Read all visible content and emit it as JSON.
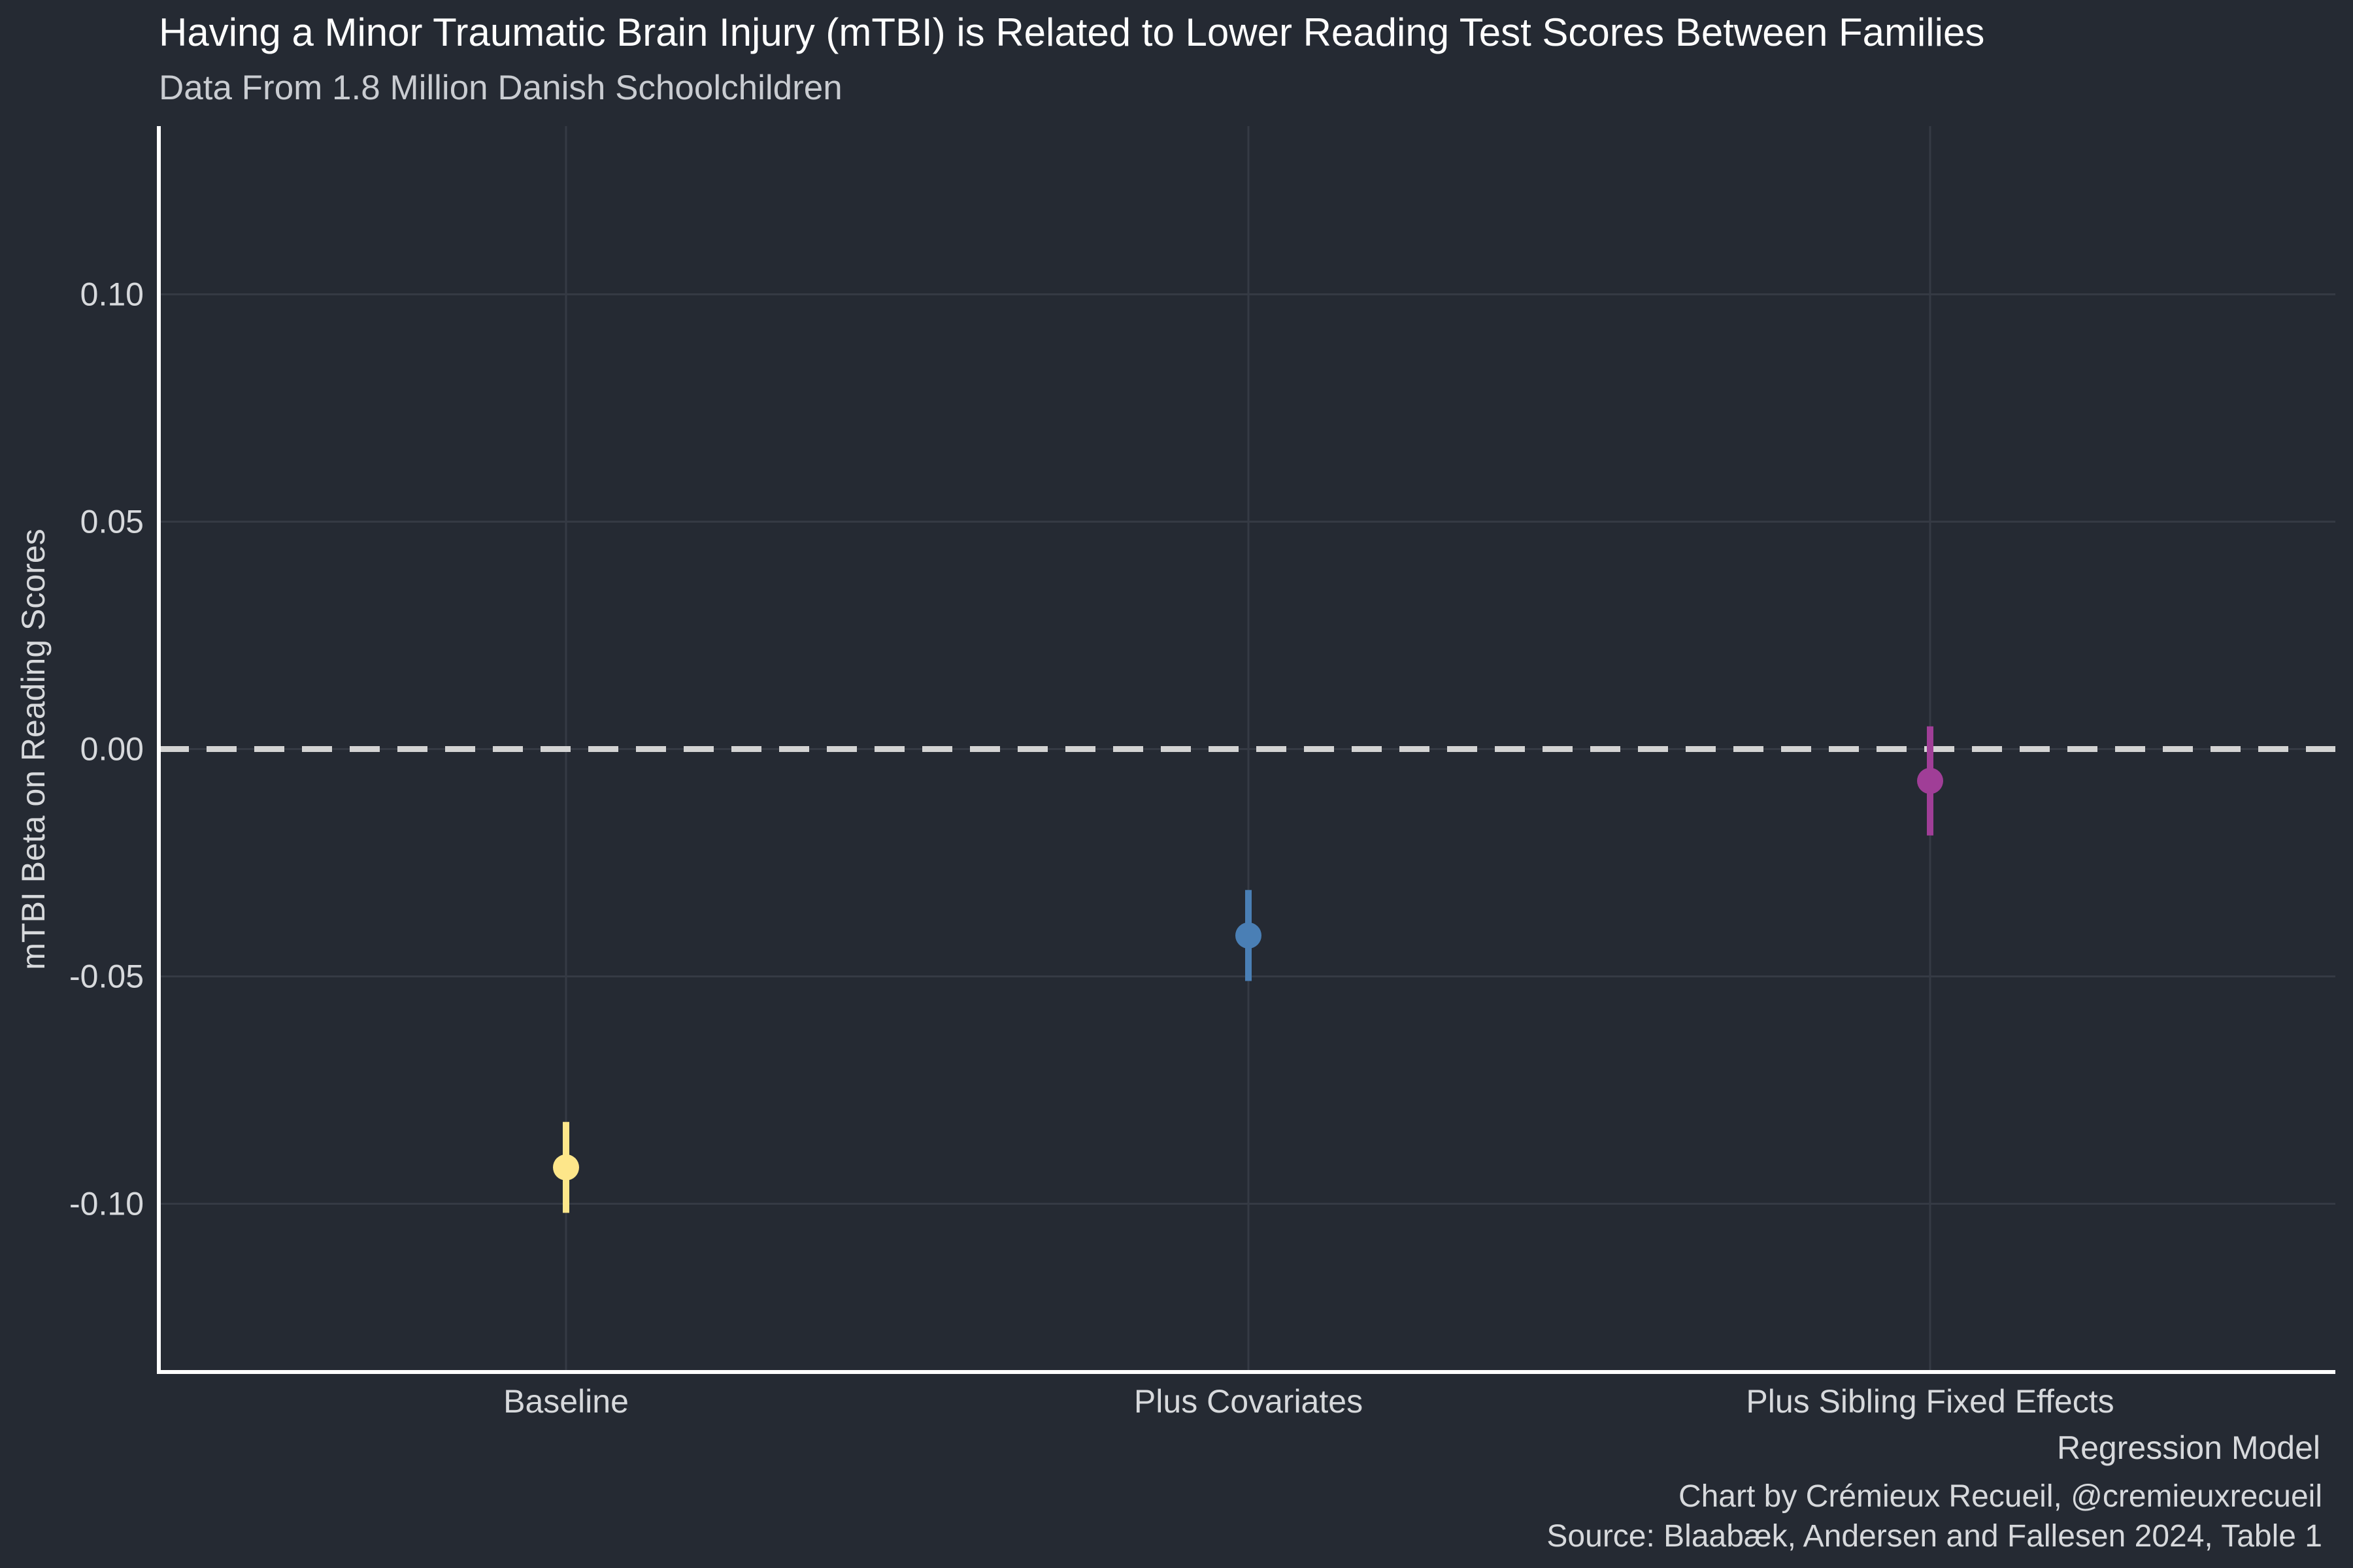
{
  "chart_data": {
    "type": "scatter",
    "title": "Having a Minor Traumatic Brain Injury (mTBI) is Related to Lower Reading Test Scores Between Families",
    "subtitle": "Data From 1.8 Million Danish Schoolchildren",
    "xlabel": "Regression Model",
    "ylabel": "mTBI Beta on Reading Scores",
    "categories": [
      "Baseline",
      "Plus Covariates",
      "Plus Sibling Fixed Effects"
    ],
    "estimates": [
      -0.092,
      -0.041,
      -0.007
    ],
    "ci_lower": [
      -0.102,
      -0.051,
      -0.019
    ],
    "ci_upper": [
      -0.082,
      -0.031,
      0.005
    ],
    "colors": [
      "#fde68a",
      "#4a7fb5",
      "#a03e97"
    ],
    "ylim": [
      -0.137,
      0.137
    ],
    "yticks": [
      0.1,
      0.05,
      0.0,
      -0.05,
      -0.1
    ],
    "ytick_labels": [
      "0.10",
      "0.05",
      "0.00",
      "-0.05",
      "-0.10"
    ],
    "reference_line": {
      "y": 0,
      "style": "dashed",
      "color": "#d3d3d3"
    },
    "grid": true,
    "legend": "none",
    "caption_lines": [
      "Chart by Crémieux Recueil, @cremieuxrecueil",
      "Source: Blaabæk, Andersen and Fallesen 2024, Table 1"
    ]
  }
}
